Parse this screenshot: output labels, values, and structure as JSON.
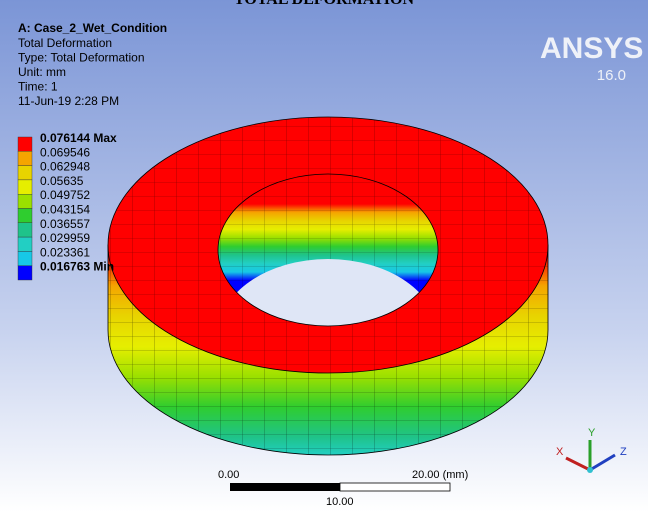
{
  "title": "TOTAL DEFORMATION",
  "header": {
    "analysis": "A: Case_2_Wet_Condition",
    "lines": [
      "Total Deformation",
      "Type: Total Deformation",
      "Unit: mm",
      "Time: 1",
      "11-Jun-19 2:28 PM"
    ]
  },
  "legend": {
    "entries": [
      {
        "label": "0.076144 Max",
        "color": "#ff0000"
      },
      {
        "label": "0.069546",
        "color": "#f5a500"
      },
      {
        "label": "0.062948",
        "color": "#e8d400"
      },
      {
        "label": "0.05635",
        "color": "#e6ee00"
      },
      {
        "label": "0.049752",
        "color": "#9be000"
      },
      {
        "label": "0.043154",
        "color": "#2fcd2f"
      },
      {
        "label": "0.036557",
        "color": "#1fc38a"
      },
      {
        "label": "0.029959",
        "color": "#22cfc3"
      },
      {
        "label": "0.023361",
        "color": "#17c8e6"
      },
      {
        "label": "0.016763 Min",
        "color": "#0000ff"
      }
    ]
  },
  "logo": {
    "name": "ANSYS",
    "version": "16.0"
  },
  "scale_bar": {
    "left": "0.00",
    "right": "20.00 (mm)",
    "middle": "10.00"
  },
  "axes": {
    "x": "X",
    "y": "Y",
    "z": "Z"
  }
}
